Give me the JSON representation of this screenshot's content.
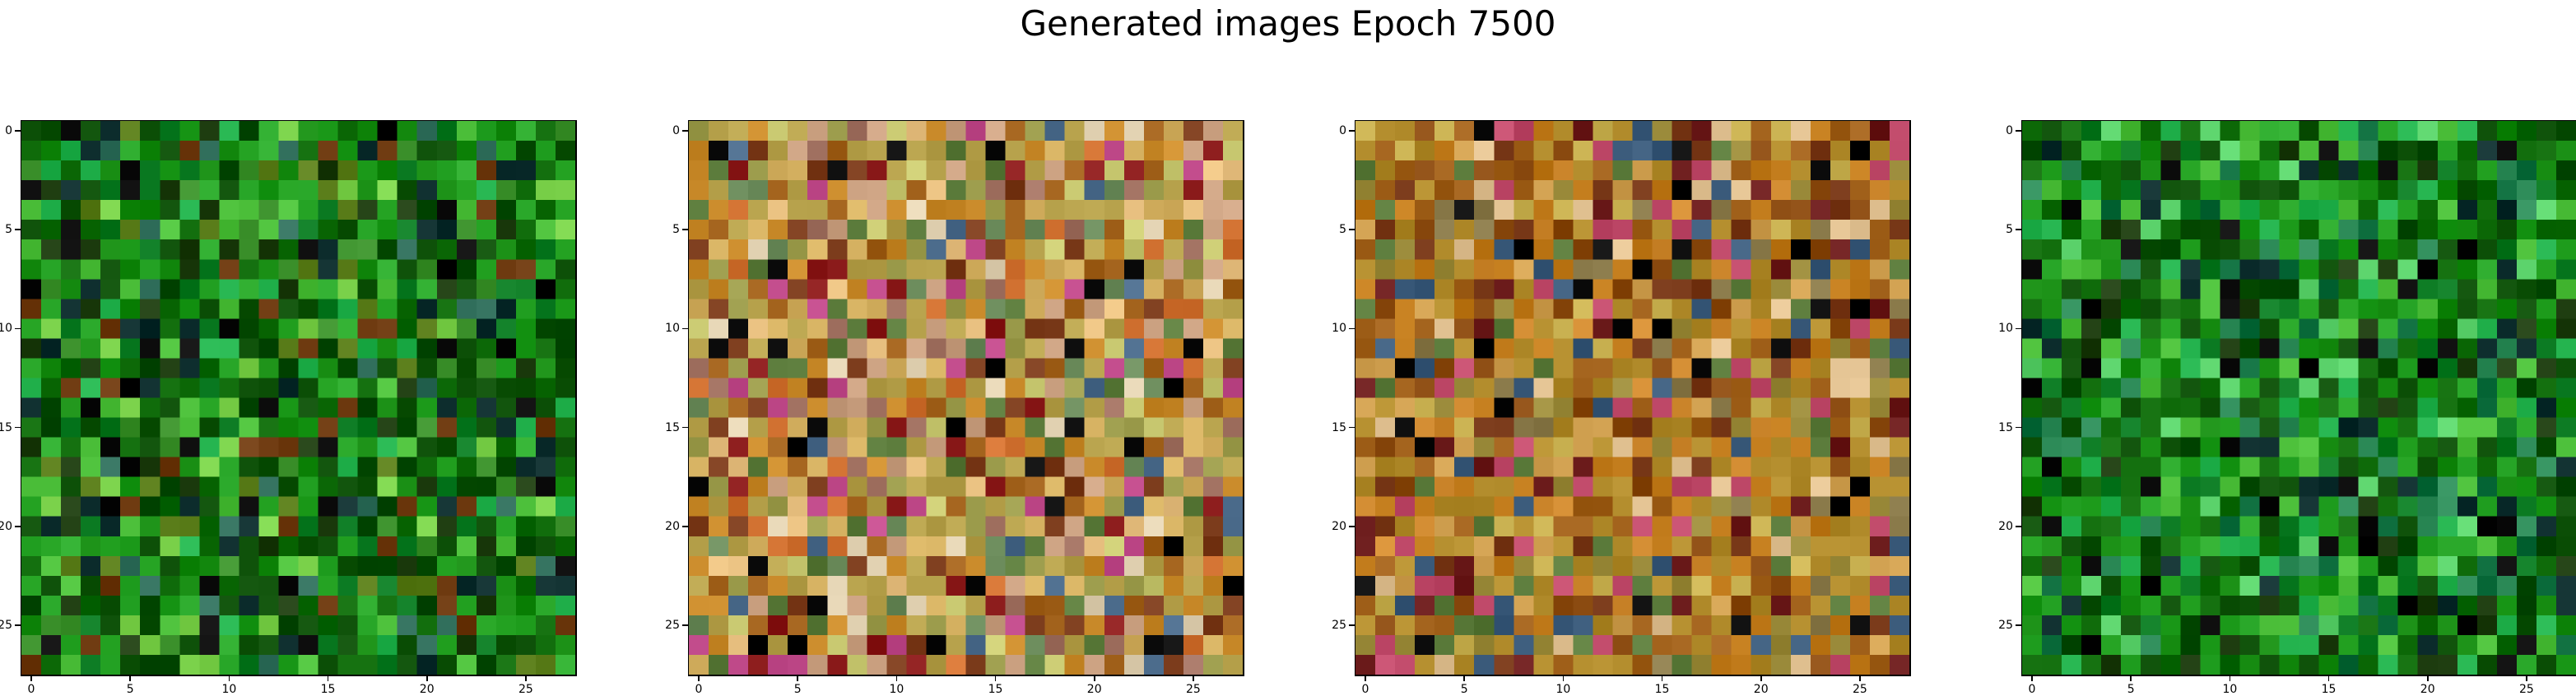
{
  "chart_data": {
    "type": "heatmap",
    "title": "Generated images Epoch 7500",
    "grid": false,
    "subplots": [
      {
        "name": "",
        "dominant_color": "green",
        "palette": [
          "#0a4d05",
          "#0f6b0a",
          "#158a10",
          "#1c9a1a",
          "#0b7a22",
          "#2aa82a",
          "#4cbf3a",
          "#3a8f2a",
          "#22b14c",
          "#5a7d1a",
          "#1e3d10",
          "#6e3a10",
          "#0e2e2e",
          "#0a0a0a",
          "#7ad14a",
          "#2f6d5a"
        ],
        "pixels_src": "generated_green_1",
        "xlim": [
          0,
          27
        ],
        "ylim": [
          27,
          0
        ],
        "xticks": [
          0,
          5,
          10,
          15,
          20,
          25
        ],
        "yticks": [
          0,
          5,
          10,
          15,
          20,
          25
        ]
      },
      {
        "name": "",
        "dominant_color": "warm multicolor",
        "palette": [
          "#b5a04a",
          "#c98a2a",
          "#d4b060",
          "#a0601a",
          "#7a3a1a",
          "#caa080",
          "#9a9a4a",
          "#c04a8a",
          "#e0d0b0",
          "#6a8a5a",
          "#d07030",
          "#8a1a1a",
          "#4a6a8a",
          "#0a0a0a",
          "#c8c870",
          "#5a7a3a",
          "#e8c080",
          "#a07060"
        ],
        "pixels_src": "generated_warm_1",
        "xlim": [
          0,
          27
        ],
        "ylim": [
          27,
          0
        ],
        "xticks": [
          0,
          5,
          10,
          15,
          20,
          25
        ],
        "yticks": [
          0,
          5,
          10,
          15,
          20,
          25
        ]
      },
      {
        "name": "",
        "dominant_color": "warm multicolor",
        "palette": [
          "#b08a2a",
          "#c07a1a",
          "#a0601a",
          "#8a4a10",
          "#d0a050",
          "#7a3a1a",
          "#9a8a3a",
          "#c04a6a",
          "#e0c090",
          "#5a7a3a",
          "#6a1a1a",
          "#3a5a7a",
          "#0a0a0a",
          "#c8b050",
          "#8a7a4a",
          "#d08a30"
        ],
        "pixels_src": "generated_warm_2",
        "xlim": [
          0,
          27
        ],
        "ylim": [
          27,
          0
        ],
        "xticks": [
          0,
          5,
          10,
          15,
          20,
          25
        ],
        "yticks": [
          0,
          5,
          10,
          15,
          20,
          25
        ]
      },
      {
        "name": "",
        "dominant_color": "green",
        "palette": [
          "#0a4d05",
          "#0f6b0a",
          "#158a10",
          "#1c9a1a",
          "#0b7a22",
          "#2aa82a",
          "#4cbf3a",
          "#22b14c",
          "#1e3d10",
          "#0e2e2e",
          "#0a0a0a",
          "#2f8d5a",
          "#5ad16a",
          "#0a6a3a"
        ],
        "pixels_src": "generated_green_2",
        "xlim": [
          0,
          27
        ],
        "ylim": [
          27,
          0
        ],
        "xticks": [
          0,
          5,
          10,
          15,
          20,
          25
        ],
        "yticks": [
          0,
          5,
          10,
          15,
          20,
          25
        ]
      }
    ]
  }
}
